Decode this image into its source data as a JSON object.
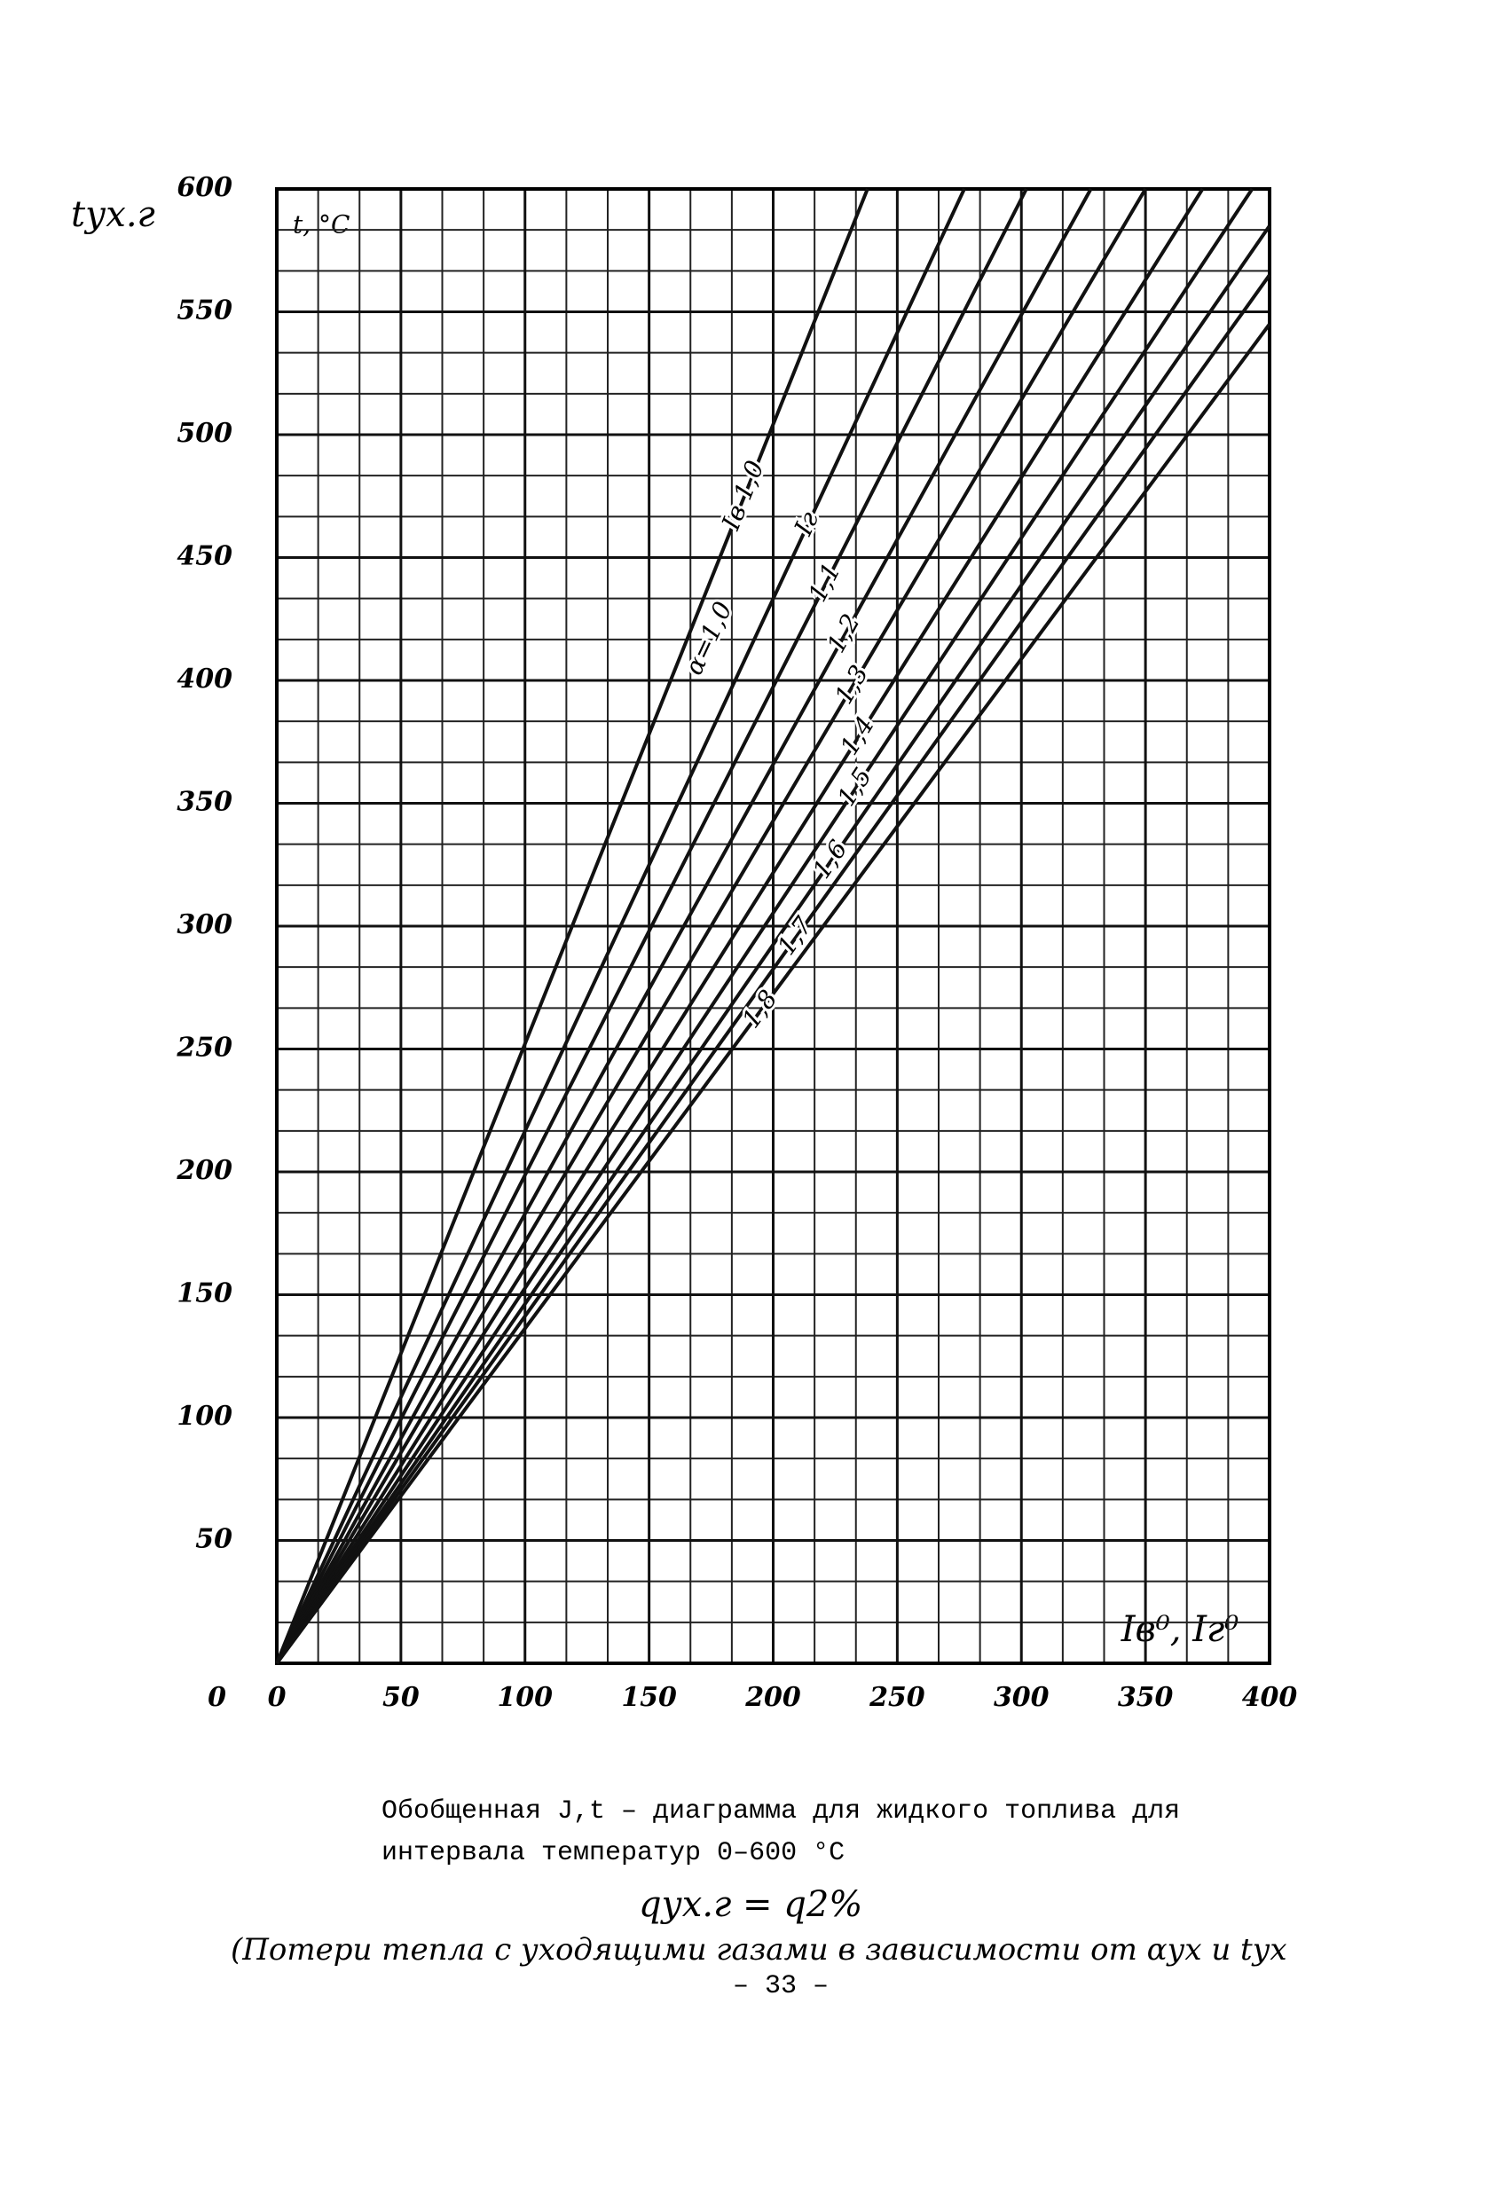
{
  "chart_data": {
    "type": "line",
    "y_label_left": "tух.г",
    "y_label": "t, °C",
    "x_label": "Iв⁰, Iг⁰",
    "xlim": [
      0,
      400
    ],
    "ylim": [
      0,
      600
    ],
    "xticks": [
      0,
      50,
      100,
      150,
      200,
      250,
      300,
      350,
      400
    ],
    "yticks": [
      0,
      50,
      100,
      150,
      200,
      250,
      300,
      350,
      400,
      450,
      500,
      550,
      600
    ],
    "grid": true,
    "minor_divisions": 3,
    "color": "#111111",
    "series": [
      {
        "name": "Iв 1,0",
        "x": [
          0,
          238
        ],
        "values": [
          0,
          600
        ]
      },
      {
        "name": "Iг",
        "x": [
          0,
          277
        ],
        "values": [
          0,
          600
        ]
      },
      {
        "name": "1,1",
        "x": [
          0,
          302
        ],
        "values": [
          0,
          600
        ]
      },
      {
        "name": "1,2",
        "x": [
          0,
          328
        ],
        "values": [
          0,
          600
        ]
      },
      {
        "name": "1,3",
        "x": [
          0,
          350
        ],
        "values": [
          0,
          600
        ]
      },
      {
        "name": "1,4",
        "x": [
          0,
          373
        ],
        "values": [
          0,
          600
        ]
      },
      {
        "name": "1,5",
        "x": [
          0,
          393
        ],
        "values": [
          0,
          600
        ]
      },
      {
        "name": "1,6",
        "x": [
          0,
          400
        ],
        "values": [
          0,
          585
        ]
      },
      {
        "name": "1,7",
        "x": [
          0,
          400
        ],
        "values": [
          0,
          565
        ]
      },
      {
        "name": "1,8",
        "x": [
          0,
          400
        ],
        "values": [
          0,
          545
        ]
      }
    ],
    "alpha_label": "α=1,0",
    "caption": [
      "Обобщенная  J,t  – диаграмма для жидкого топлива для",
      "интервала температур 0–600 °С"
    ],
    "annotations": [
      "qух.г = q2%",
      "(Потери тепла с уходящими газами в зависимости от αух и tух"
    ],
    "page_number": "– 33 –"
  }
}
